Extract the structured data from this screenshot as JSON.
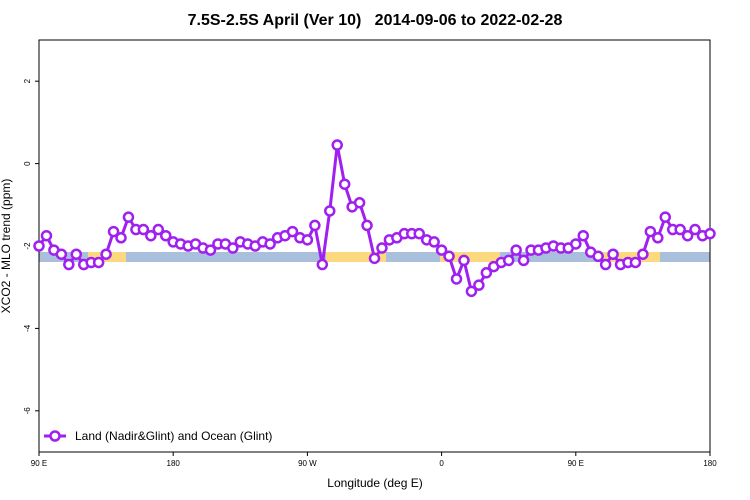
{
  "chart_data": {
    "type": "line",
    "title": "7.5S-2.5S April (Ver 10)   2014-09-06 to 2022-02-28",
    "xlabel": "Longitude (deg E)",
    "ylabel": "XCO2 - MLO trend (ppm)",
    "xlim": [
      90,
      540
    ],
    "ylim": [
      -7,
      3
    ],
    "xticks": [
      {
        "value": 90,
        "label": "90 E"
      },
      180,
      {
        "value": 270,
        "label": "90 W"
      },
      {
        "value": 360,
        "label": "0"
      },
      {
        "value": 450,
        "label": "90 E"
      },
      {
        "value": 540,
        "label": "180"
      }
    ],
    "yticks": [
      2,
      0,
      -2,
      -4,
      -6
    ],
    "legend": "bottom-left",
    "x": [
      90,
      95,
      100,
      105,
      110,
      115,
      120,
      125,
      130,
      135,
      140,
      145,
      150,
      155,
      160,
      165,
      170,
      175,
      180,
      185,
      190,
      195,
      200,
      205,
      210,
      215,
      220,
      225,
      230,
      235,
      240,
      245,
      250,
      255,
      260,
      265,
      270,
      275,
      280,
      285,
      290,
      295,
      300,
      305,
      310,
      315,
      320,
      325,
      330,
      335,
      340,
      345,
      350,
      355,
      360,
      365,
      370,
      375,
      380,
      385,
      390,
      395,
      400,
      405,
      410,
      415,
      420,
      425,
      430,
      435,
      440,
      445,
      450,
      455,
      460,
      465,
      470,
      475,
      480,
      485,
      490,
      495,
      500,
      505,
      510,
      515,
      520,
      525,
      530,
      535,
      540
    ],
    "series": [
      {
        "name": "Land (Nadir&Glint) and Ocean (Glint)",
        "color": "#a020f0",
        "values": [
          -2.0,
          -1.75,
          -2.1,
          -2.2,
          -2.45,
          -2.2,
          -2.45,
          -2.4,
          -2.4,
          -2.2,
          -1.65,
          -1.8,
          -1.3,
          -1.6,
          -1.6,
          -1.75,
          -1.6,
          -1.75,
          -1.9,
          -1.95,
          -2.0,
          -1.95,
          -2.05,
          -2.1,
          -1.95,
          -1.95,
          -2.05,
          -1.9,
          -1.95,
          -2.0,
          -1.9,
          -1.95,
          -1.8,
          -1.75,
          -1.65,
          -1.8,
          -1.85,
          -1.5,
          -2.45,
          -1.15,
          0.45,
          -0.5,
          -1.05,
          -0.95,
          -1.5,
          -2.3,
          -2.05,
          -1.85,
          -1.8,
          -1.7,
          -1.7,
          -1.7,
          -1.85,
          -1.9,
          -2.1,
          -2.25,
          -2.8,
          -2.35,
          -3.1,
          -2.95,
          -2.65,
          -2.5,
          -2.4,
          -2.35,
          -2.1,
          -2.35,
          -2.1,
          -2.1,
          -2.05,
          -2.0,
          -2.05,
          -2.05,
          -1.95,
          -1.75,
          -2.15,
          -2.25,
          -2.45,
          -2.2,
          -2.45,
          -2.4,
          -2.4,
          -2.2,
          -1.65,
          -1.8,
          -1.3,
          -1.6,
          -1.6,
          -1.75,
          -1.6,
          -1.75,
          -1.7
        ]
      }
    ]
  }
}
